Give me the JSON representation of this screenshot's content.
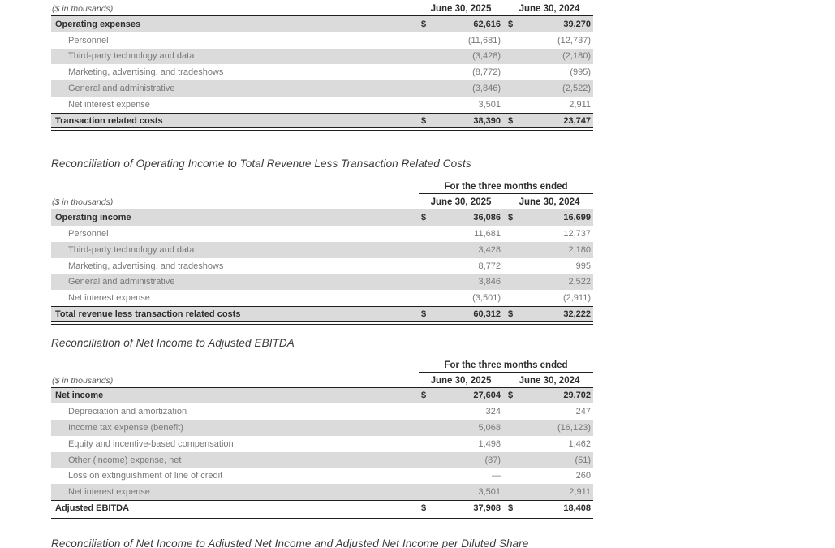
{
  "meta": {
    "units_label": "($ in thousands)",
    "period_header": "For the three months ended",
    "col_2025": "June 30, 2025",
    "col_2024": "June 30, 2024",
    "dollar_sign": "$"
  },
  "section_titles": {
    "operating_income": "Reconciliation of Operating Income to Total Revenue Less Transaction Related Costs",
    "adjusted_ebitda": "Reconciliation of Net Income to Adjusted EBITDA",
    "adjusted_net_income": "Reconciliation of Net Income to Adjusted Net Income and Adjusted Net Income per Diluted Share"
  },
  "table1": {
    "rows": [
      {
        "label": "Operating expenses",
        "v2025": "62,616",
        "v2024": "39,270"
      },
      {
        "label": "Personnel",
        "v2025": "(11,681)",
        "v2024": "(12,737)"
      },
      {
        "label": "Third-party technology and data",
        "v2025": "(3,428)",
        "v2024": "(2,180)"
      },
      {
        "label": "Marketing, advertising, and tradeshows",
        "v2025": "(8,772)",
        "v2024": "(995)"
      },
      {
        "label": "General and administrative",
        "v2025": "(3,846)",
        "v2024": "(2,522)"
      },
      {
        "label": "Net interest expense",
        "v2025": "3,501",
        "v2024": "2,911"
      },
      {
        "label": "Transaction related costs",
        "v2025": "38,390",
        "v2024": "23,747"
      }
    ]
  },
  "table2": {
    "rows": [
      {
        "label": "Operating income",
        "v2025": "36,086",
        "v2024": "16,699"
      },
      {
        "label": "Personnel",
        "v2025": "11,681",
        "v2024": "12,737"
      },
      {
        "label": "Third-party technology and data",
        "v2025": "3,428",
        "v2024": "2,180"
      },
      {
        "label": "Marketing, advertising, and tradeshows",
        "v2025": "8,772",
        "v2024": "995"
      },
      {
        "label": "General and administrative",
        "v2025": "3,846",
        "v2024": "2,522"
      },
      {
        "label": "Net interest expense",
        "v2025": "(3,501)",
        "v2024": "(2,911)"
      },
      {
        "label": "Total revenue less transaction related costs",
        "v2025": "60,312",
        "v2024": "32,222"
      }
    ]
  },
  "table3": {
    "rows": [
      {
        "label": "Net income",
        "v2025": "27,604",
        "v2024": "29,702"
      },
      {
        "label": "Depreciation and amortization",
        "v2025": "324",
        "v2024": "247"
      },
      {
        "label": "Income tax expense (benefit)",
        "v2025": "5,068",
        "v2024": "(16,123)"
      },
      {
        "label": "Equity and incentive-based compensation",
        "v2025": "1,498",
        "v2024": "1,462"
      },
      {
        "label": "Other (income) expense, net",
        "v2025": "(87)",
        "v2024": "(51)"
      },
      {
        "label": "Loss on extinguishment of line of credit",
        "v2025": "—",
        "v2024": "260"
      },
      {
        "label": "Net interest expense",
        "v2025": "3,501",
        "v2024": "2,911"
      },
      {
        "label": "Adjusted EBITDA",
        "v2025": "37,908",
        "v2024": "18,408"
      }
    ]
  }
}
